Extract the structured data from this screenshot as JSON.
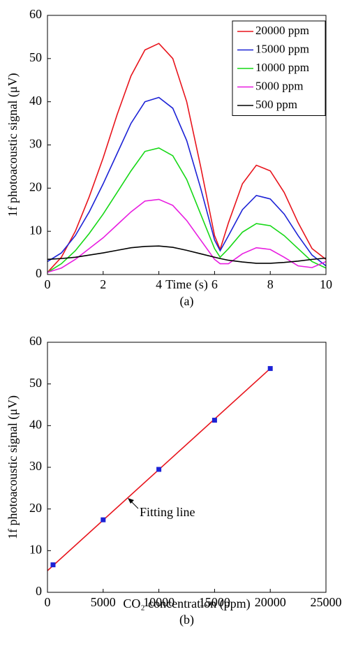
{
  "chart_data": [
    {
      "type": "line",
      "ylabel": "1f photoacoustic signal (μV)",
      "xlabel": "Time (s)",
      "caption": "(a)",
      "x": [
        0,
        0.5,
        1,
        1.5,
        2,
        2.5,
        3,
        3.5,
        4,
        4.5,
        5,
        5.5,
        6,
        6.2,
        6.5,
        7,
        7.5,
        8,
        8.5,
        9,
        9.5,
        10
      ],
      "series": [
        {
          "name": "20000 ppm",
          "color": "#e8141c",
          "values": [
            0.5,
            4,
            10,
            18,
            27,
            37,
            46,
            52,
            53.5,
            50,
            40,
            25,
            9,
            5.8,
            12,
            21,
            25.3,
            24,
            19,
            12,
            6,
            3.5
          ]
        },
        {
          "name": "15000 ppm",
          "color": "#1c22d6",
          "values": [
            3,
            5,
            9,
            14.5,
            21,
            28,
            35,
            40,
            41,
            38.5,
            31,
            20,
            8,
            5.5,
            9,
            15,
            18.3,
            17.5,
            14,
            9,
            4.5,
            2
          ]
        },
        {
          "name": "10000 ppm",
          "color": "#16d816",
          "values": [
            0.5,
            2.5,
            5.5,
            9.5,
            14,
            19,
            24,
            28.5,
            29.3,
            27.5,
            22,
            14,
            6,
            4,
            6,
            9.8,
            11.8,
            11.3,
            9,
            6,
            3,
            1.5
          ]
        },
        {
          "name": "5000 ppm",
          "color": "#e81ce0",
          "values": [
            0.5,
            1.5,
            3.5,
            6,
            8.5,
            11.5,
            14.5,
            17,
            17.4,
            16,
            12.5,
            8,
            3.5,
            2.5,
            2.5,
            4.8,
            6.2,
            5.8,
            4,
            2,
            1.6,
            3
          ]
        },
        {
          "name": "500 ppm",
          "color": "#000000",
          "values": [
            3.5,
            3.7,
            4,
            4.5,
            5,
            5.6,
            6.2,
            6.5,
            6.6,
            6.3,
            5.6,
            4.8,
            4,
            3.7,
            3.3,
            2.9,
            2.6,
            2.6,
            2.8,
            3.1,
            3.5,
            3.8
          ]
        }
      ],
      "xlim": [
        0,
        10
      ],
      "xticks": [
        0,
        2,
        4,
        6,
        8,
        10
      ],
      "ylim": [
        0,
        60
      ],
      "yticks": [
        0,
        10,
        20,
        30,
        40,
        50,
        60
      ],
      "legend": "upper right"
    },
    {
      "type": "scatter",
      "ylabel": "1f photoacoustic signal (μV)",
      "xlabel": "CO₂ concentration (ppm)",
      "caption": "(b)",
      "x": [
        500,
        5000,
        10000,
        15000,
        20000
      ],
      "values": [
        6.6,
        17.4,
        29.5,
        41.3,
        53.7
      ],
      "color": "#1c22d6",
      "fit": {
        "x": [
          0,
          20000
        ],
        "values": [
          5.2,
          53.7
        ],
        "color": "#e8141c"
      },
      "annotation": "Fitting line",
      "xlim": [
        0,
        25000
      ],
      "xticks": [
        0,
        5000,
        10000,
        15000,
        20000,
        25000
      ],
      "ylim": [
        0,
        60
      ],
      "yticks": [
        0,
        10,
        20,
        30,
        40,
        50,
        60
      ]
    }
  ]
}
